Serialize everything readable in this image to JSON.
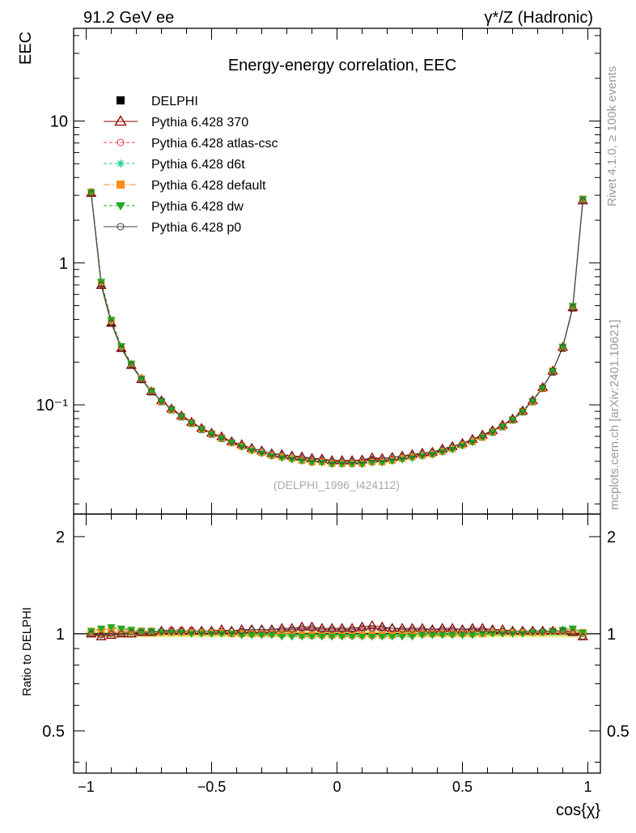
{
  "header": {
    "energy_label": "91.2 GeV ee",
    "process_label": "γ*/Z (Hadronic)"
  },
  "side_labels": {
    "rivet": "Rivet 4.1.0, ≥ 100k events",
    "mcplots": "mcplots.cern.ch [arXiv:2401.10621]"
  },
  "chart_data": {
    "type": "line",
    "title": "Energy-energy correlation, EEC",
    "watermark": "(DELPHI_1996_I424112)",
    "ylabel": "EEC",
    "ratio_ylabel": "Ratio to DELPHI",
    "xlabel": "cos{χ}",
    "xlim": [
      -1.05,
      1.05
    ],
    "ylim": [
      0.017,
      45
    ],
    "ylog": true,
    "ratio_ylim": [
      0.37,
      2.35
    ],
    "x_ticks": [
      {
        "value": -1,
        "label": "−1"
      },
      {
        "value": -0.5,
        "label": "−0.5"
      },
      {
        "value": 0,
        "label": "0"
      },
      {
        "value": 0.5,
        "label": "0.5"
      },
      {
        "value": 1,
        "label": "1"
      }
    ],
    "y_ticks": [
      {
        "value": 10,
        "label": "10"
      },
      {
        "value": 1,
        "label": "1"
      },
      {
        "value": 0.1,
        "label": "10⁻¹"
      }
    ],
    "ratio_ticks": [
      {
        "value": 2,
        "label": "2"
      },
      {
        "value": 1,
        "label": "1"
      },
      {
        "value": 0.5,
        "label": "0.5"
      }
    ],
    "x": [
      -0.98,
      -0.94,
      -0.9,
      -0.86,
      -0.82,
      -0.78,
      -0.74,
      -0.7,
      -0.66,
      -0.62,
      -0.58,
      -0.54,
      -0.5,
      -0.46,
      -0.42,
      -0.38,
      -0.34,
      -0.3,
      -0.26,
      -0.22,
      -0.18,
      -0.14,
      -0.1,
      -0.06,
      -0.02,
      0.02,
      0.06,
      0.1,
      0.14,
      0.18,
      0.22,
      0.26,
      0.3,
      0.34,
      0.38,
      0.42,
      0.46,
      0.5,
      0.54,
      0.58,
      0.62,
      0.66,
      0.7,
      0.74,
      0.78,
      0.82,
      0.86,
      0.9,
      0.94,
      0.98
    ],
    "data_values": [
      3.1,
      0.71,
      0.38,
      0.25,
      0.19,
      0.15,
      0.123,
      0.105,
      0.092,
      0.082,
      0.074,
      0.067,
      0.062,
      0.058,
      0.054,
      0.051,
      0.048,
      0.046,
      0.044,
      0.043,
      0.042,
      0.041,
      0.04,
      0.04,
      0.039,
      0.039,
      0.039,
      0.039,
      0.04,
      0.04,
      0.041,
      0.042,
      0.043,
      0.044,
      0.045,
      0.047,
      0.049,
      0.052,
      0.055,
      0.059,
      0.064,
      0.07,
      0.078,
      0.089,
      0.105,
      0.13,
      0.17,
      0.25,
      0.48,
      2.8
    ],
    "series": [
      {
        "name": "DELPHI",
        "color": "#000000",
        "marker": "square-filled",
        "dash": "",
        "is_data": true
      },
      {
        "name": "Pythia 6.428 370",
        "color": "#8b0000",
        "marker": "triangle-open",
        "dash": "",
        "ratio": [
          1.0,
          0.98,
          0.99,
          1.0,
          1.0,
          1.01,
          1.01,
          1.02,
          1.02,
          1.02,
          1.02,
          1.02,
          1.02,
          1.03,
          1.02,
          1.03,
          1.03,
          1.03,
          1.03,
          1.04,
          1.04,
          1.05,
          1.05,
          1.04,
          1.04,
          1.04,
          1.04,
          1.05,
          1.06,
          1.05,
          1.04,
          1.04,
          1.04,
          1.04,
          1.03,
          1.04,
          1.04,
          1.03,
          1.04,
          1.04,
          1.03,
          1.03,
          1.02,
          1.02,
          1.02,
          1.02,
          1.02,
          1.02,
          1.01,
          0.98
        ]
      },
      {
        "name": "Pythia 6.428 atlas-csc",
        "color": "#ff3b50",
        "marker": "circle-open",
        "dash": "4,3",
        "ratio": [
          1.01,
          1.0,
          1.01,
          1.01,
          1.02,
          1.02,
          1.02,
          1.02,
          1.03,
          1.03,
          1.03,
          1.02,
          1.02,
          1.03,
          1.02,
          1.02,
          1.03,
          1.03,
          1.02,
          1.02,
          1.03,
          1.03,
          1.03,
          1.02,
          1.02,
          1.02,
          1.02,
          1.02,
          1.03,
          1.02,
          1.02,
          1.02,
          1.02,
          1.02,
          1.02,
          1.02,
          1.02,
          1.02,
          1.03,
          1.02,
          1.02,
          1.02,
          1.02,
          1.02,
          1.02,
          1.02,
          1.02,
          1.02,
          1.02,
          1.0
        ]
      },
      {
        "name": "Pythia 6.428 d6t",
        "color": "#1fcf8f",
        "marker": "star",
        "dash": "4,3",
        "ratio": [
          1.02,
          1.03,
          1.04,
          1.03,
          1.03,
          1.02,
          1.02,
          1.02,
          1.01,
          1.01,
          1.01,
          1.01,
          1.0,
          1.0,
          1.0,
          1.0,
          1.0,
          1.0,
          1.0,
          0.99,
          0.99,
          0.99,
          0.99,
          0.99,
          0.99,
          0.99,
          0.99,
          0.99,
          0.99,
          0.99,
          0.99,
          0.99,
          0.99,
          1.0,
          1.0,
          1.0,
          1.0,
          1.0,
          1.0,
          1.0,
          1.01,
          1.01,
          1.01,
          1.01,
          1.01,
          1.01,
          1.02,
          1.03,
          1.03,
          1.01
        ]
      },
      {
        "name": "Pythia 6.428 default",
        "color": "#ff8c1a",
        "marker": "square-filled",
        "dash": "8,3,2,3",
        "ratio": [
          1.02,
          1.03,
          1.03,
          1.03,
          1.02,
          1.02,
          1.02,
          1.01,
          1.01,
          1.01,
          1.01,
          1.01,
          1.01,
          1.01,
          1.0,
          1.0,
          1.0,
          1.0,
          1.0,
          1.0,
          1.0,
          0.99,
          0.99,
          0.99,
          0.99,
          0.99,
          0.99,
          0.99,
          0.99,
          0.99,
          0.99,
          1.0,
          1.0,
          1.0,
          1.0,
          1.0,
          1.0,
          1.0,
          1.0,
          1.0,
          1.01,
          1.01,
          1.01,
          1.01,
          1.01,
          1.01,
          1.02,
          1.02,
          1.03,
          1.01
        ]
      },
      {
        "name": "Pythia 6.428 dw",
        "color": "#22aa22",
        "marker": "triangle-down-filled",
        "dash": "4,3",
        "ratio": [
          1.02,
          1.04,
          1.05,
          1.04,
          1.03,
          1.02,
          1.02,
          1.01,
          1.01,
          1.01,
          1.0,
          1.0,
          1.0,
          1.0,
          1.0,
          0.99,
          0.99,
          0.99,
          0.99,
          0.98,
          0.98,
          0.98,
          0.98,
          0.98,
          0.98,
          0.98,
          0.98,
          0.98,
          0.98,
          0.98,
          0.98,
          0.98,
          0.98,
          0.99,
          0.99,
          0.99,
          0.99,
          0.99,
          0.99,
          1.0,
          1.0,
          1.0,
          1.0,
          1.0,
          1.01,
          1.01,
          1.02,
          1.03,
          1.04,
          1.01
        ]
      },
      {
        "name": "Pythia 6.428 p0",
        "color": "#444444",
        "marker": "circle-open",
        "dash": "",
        "ratio": [
          1.0,
          0.99,
          1.0,
          1.0,
          1.01,
          1.01,
          1.01,
          1.02,
          1.02,
          1.02,
          1.02,
          1.02,
          1.02,
          1.02,
          1.02,
          1.02,
          1.03,
          1.03,
          1.03,
          1.03,
          1.03,
          1.04,
          1.04,
          1.03,
          1.03,
          1.03,
          1.03,
          1.04,
          1.04,
          1.04,
          1.04,
          1.03,
          1.03,
          1.03,
          1.03,
          1.03,
          1.03,
          1.03,
          1.03,
          1.03,
          1.03,
          1.02,
          1.02,
          1.02,
          1.02,
          1.02,
          1.02,
          1.02,
          1.01,
          0.98
        ]
      }
    ],
    "band": {
      "outer_color": "#f5f082",
      "inner_color": "#a8e07a",
      "outer_low": 0.975,
      "outer_high": 1.02,
      "inner_low": 0.985,
      "inner_high": 1.012
    }
  }
}
